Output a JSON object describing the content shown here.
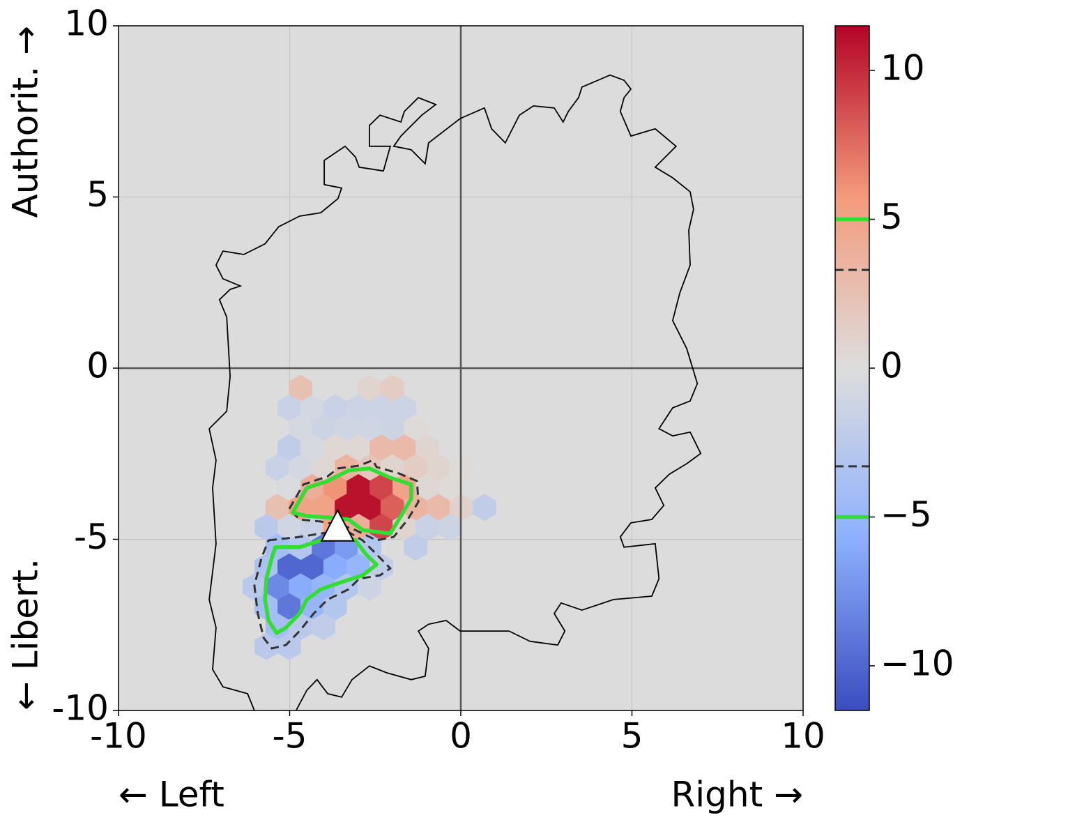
{
  "chart_data": {
    "type": "hexbin",
    "xlabel_left": "← Left",
    "xlabel_right": "Right →",
    "ylabel_top": "Authorit. →",
    "ylabel_bottom": "← Libert.",
    "xlim": [
      -10,
      10
    ],
    "ylim": [
      -10,
      10
    ],
    "xticks": [
      -10,
      -5,
      0,
      5,
      10
    ],
    "yticks": [
      -10,
      -5,
      0,
      5,
      10
    ],
    "grid": true,
    "zero_lines": true,
    "facecolor": "#dcdcdc",
    "colormap": [
      "#3b4cc0",
      "#8db0fe",
      "#dddddd",
      "#f49a7b",
      "#b40426"
    ],
    "clim": [
      -11.5,
      11.5
    ],
    "cticks": [
      {
        "value": -10,
        "label": "−10"
      },
      {
        "value": -5,
        "label": "−5"
      },
      0,
      5,
      10
    ],
    "hex": {
      "x": [
        -4.68,
        -2.67,
        -2.0,
        -5.01,
        -4.34,
        -3.67,
        -2.99,
        -2.32,
        -1.65,
        -4.68,
        -4.01,
        -3.34,
        -2.67,
        -2.0,
        -1.32,
        -5.01,
        -4.34,
        -3.67,
        -2.99,
        -2.32,
        -1.65,
        -0.98,
        -5.36,
        -4.68,
        -4.01,
        -3.34,
        -2.67,
        -2.0,
        -1.32,
        -0.65,
        0.02,
        -5.01,
        -4.34,
        -3.67,
        -2.99,
        -2.32,
        -1.65,
        -0.98,
        -0.31,
        -5.36,
        -4.68,
        -4.01,
        -3.34,
        -2.67,
        -2.0,
        -1.32,
        -0.65,
        0.02,
        0.69,
        -5.68,
        -5.01,
        -4.34,
        -3.67,
        -2.99,
        -2.32,
        -1.65,
        -0.98,
        -0.31,
        -5.36,
        -4.68,
        -4.01,
        -3.34,
        -2.67,
        -1.32,
        -5.68,
        -5.01,
        -4.34,
        -3.67,
        -2.99,
        -2.32,
        -6.03,
        -5.36,
        -4.68,
        -4.01,
        -3.34,
        -2.67,
        -5.68,
        -5.01,
        -4.34,
        -3.67,
        -5.36,
        -4.68,
        -4.01,
        -5.68,
        -5.01
      ],
      "y": [
        -0.59,
        -0.59,
        -0.59,
        -1.17,
        -1.17,
        -1.17,
        -1.17,
        -1.17,
        -1.17,
        -1.75,
        -1.75,
        -1.75,
        -1.75,
        -1.75,
        -1.75,
        -2.33,
        -2.33,
        -2.33,
        -2.33,
        -2.33,
        -2.33,
        -2.33,
        -2.91,
        -2.91,
        -2.91,
        -2.91,
        -2.91,
        -2.91,
        -2.91,
        -2.91,
        -2.91,
        -3.49,
        -3.49,
        -3.49,
        -3.49,
        -3.49,
        -3.49,
        -3.49,
        -3.49,
        -4.07,
        -4.07,
        -4.07,
        -4.07,
        -4.07,
        -4.07,
        -4.07,
        -4.07,
        -4.07,
        -4.07,
        -4.65,
        -4.65,
        -4.65,
        -4.65,
        -4.65,
        -4.65,
        -4.65,
        -4.65,
        -4.65,
        -5.23,
        -5.23,
        -5.23,
        -5.23,
        -5.23,
        -5.23,
        -5.81,
        -5.81,
        -5.81,
        -5.81,
        -5.81,
        -5.81,
        -6.39,
        -6.39,
        -6.39,
        -6.39,
        -6.39,
        -6.39,
        -6.97,
        -6.97,
        -6.97,
        -6.97,
        -7.55,
        -7.55,
        -7.55,
        -8.13,
        -8.13
      ],
      "values": [
        2.5,
        0.8,
        1.5,
        -1.5,
        -0.8,
        -1.5,
        -1.3,
        -1.3,
        -1.3,
        -0.7,
        -1.2,
        -1.0,
        -1.0,
        -1.2,
        0.3,
        -2,
        -0.5,
        0.5,
        0.5,
        3,
        3,
        0.8,
        -1.5,
        -0.8,
        0.5,
        3.5,
        2,
        0.8,
        1.5,
        0.8,
        0.3,
        -0.3,
        4,
        6,
        11,
        9,
        5,
        0.5,
        0.3,
        2.5,
        5,
        5,
        11,
        11,
        8,
        3.5,
        3,
        1,
        -2,
        -2.5,
        -1,
        -1.5,
        5,
        4,
        9,
        0.8,
        -1.5,
        -1.2,
        -4,
        -3,
        -9,
        -7,
        -3,
        -2,
        -3.5,
        -10,
        -10,
        -6,
        -5,
        -2,
        -2.5,
        -8,
        -6,
        -5,
        -3,
        -1.2,
        -4,
        -9,
        -5,
        -3,
        -4,
        -2.5,
        -2,
        -2.5,
        -2.5
      ]
    },
    "outline": {
      "x": [
        -6.03,
        -6.23,
        -6.95,
        -7.25,
        -7.15,
        -7.35,
        -7.15,
        -7.25,
        -7.15,
        -7.35,
        -6.84,
        -6.74,
        -6.84,
        -7.05,
        -6.74,
        -6.44,
        -6.95,
        -7.15,
        -6.95,
        -6.34,
        -5.72,
        -5.32,
        -4.71,
        -4.09,
        -3.59,
        -3.48,
        -3.99,
        -3.99,
        -3.38,
        -3.08,
        -2.97,
        -2.26,
        -2.06,
        -2.67,
        -2.67,
        -2.36,
        -1.75,
        -1.65,
        -1.24,
        -0.73,
        -1.14,
        -1.75,
        -1.96,
        -1.45,
        -1.04,
        -0.94,
        -0.02,
        0.69,
        0.9,
        1.3,
        1.71,
        2.12,
        2.73,
        2.99,
        3.14,
        3.44,
        3.54,
        4.36,
        4.77,
        4.97,
        4.77,
        4.66,
        4.97,
        5.68,
        6.29,
        5.68,
        6.19,
        6.7,
        6.8,
        6.66,
        6.7,
        6.4,
        6.19,
        6.6,
        6.91,
        6.7,
        6.19,
        5.79,
        6.19,
        6.7,
        7.01,
        6.6,
        6.09,
        5.68,
        5.93,
        5.58,
        4.97,
        4.66,
        4.77,
        5.68,
        5.79,
        5.58,
        4.46,
        3.54,
        2.93,
        2.73,
        3.04,
        2.83,
        2.02,
        1.41,
        -0.02,
        -0.43,
        -0.94,
        -1.24,
        -0.94,
        -1.04,
        -1.45,
        -2.16,
        -2.67,
        -3.18,
        -3.48,
        -3.89,
        -4.2,
        -4.5,
        -4.81
      ],
      "y": [
        -10.0,
        -9.51,
        -9.31,
        -8.8,
        -7.58,
        -6.76,
        -5.13,
        -3.5,
        -2.69,
        -1.77,
        -1.26,
        -0.24,
        1.49,
        2.0,
        2.3,
        2.4,
        2.61,
        3.01,
        3.42,
        3.32,
        3.63,
        4.13,
        4.44,
        4.54,
        4.95,
        5.26,
        5.36,
        6.07,
        6.48,
        6.17,
        5.87,
        5.76,
        6.48,
        6.48,
        7.09,
        7.39,
        7.19,
        7.5,
        7.9,
        7.7,
        7.39,
        6.78,
        6.48,
        6.38,
        5.97,
        6.58,
        7.29,
        7.6,
        6.99,
        6.58,
        7.39,
        7.66,
        7.6,
        7.19,
        7.5,
        7.9,
        8.21,
        8.56,
        8.41,
        8.15,
        7.9,
        7.5,
        6.78,
        6.99,
        6.48,
        5.87,
        5.56,
        5.15,
        4.64,
        4.03,
        3.01,
        2.2,
        1.39,
        0.57,
        -0.45,
        -0.96,
        -1.16,
        -1.77,
        -1.98,
        -1.87,
        -2.49,
        -2.79,
        -3.1,
        -3.5,
        -4.01,
        -4.42,
        -4.52,
        -4.93,
        -5.23,
        -5.13,
        -6.15,
        -6.66,
        -6.76,
        -7.07,
        -6.86,
        -7.17,
        -7.68,
        -8.09,
        -7.98,
        -7.68,
        -7.68,
        -7.37,
        -7.48,
        -7.68,
        -8.19,
        -9.0,
        -9.1,
        -8.9,
        -8.7,
        -9.1,
        -9.61,
        -9.51,
        -9.1,
        -9.41,
        -10.0
      ]
    },
    "contours": [
      {
        "level": 3.3,
        "color": "#333333",
        "style": "dashed",
        "x": [
          -5.01,
          -4.6,
          -3.89,
          -3.59,
          -2.97,
          -2.57,
          -2.46,
          -1.85,
          -1.28,
          -1.24,
          -1.55,
          -1.96,
          -2.46,
          -3.08,
          -3.38,
          -4.09,
          -4.71
        ],
        "y": [
          -4.11,
          -3.4,
          -3.16,
          -2.93,
          -2.85,
          -2.69,
          -2.89,
          -3.06,
          -3.3,
          -3.91,
          -4.42,
          -4.93,
          -5.03,
          -4.73,
          -4.62,
          -4.48,
          -4.42
        ]
      },
      {
        "level": -3.3,
        "color": "#333333",
        "style": "dashed",
        "x": [
          -5.62,
          -4.71,
          -4.09,
          -3.38,
          -2.87,
          -2.46,
          -2.06,
          -2.36,
          -2.97,
          -3.28,
          -3.89,
          -4.3,
          -4.71,
          -5.11,
          -5.52,
          -5.76,
          -5.93,
          -6.03,
          -5.82
        ],
        "y": [
          -5.03,
          -4.93,
          -4.83,
          -4.73,
          -5.03,
          -5.44,
          -5.85,
          -6.05,
          -6.15,
          -6.46,
          -6.76,
          -7.17,
          -7.68,
          -8.09,
          -8.19,
          -7.88,
          -7.17,
          -6.35,
          -5.54
        ]
      },
      {
        "level": 5,
        "color": "#33dd33",
        "style": "solid",
        "x": [
          -4.91,
          -4.5,
          -3.89,
          -3.28,
          -2.67,
          -2.06,
          -1.45,
          -1.45,
          -1.75,
          -2.06,
          -2.87,
          -3.28,
          -3.89,
          -4.5
        ],
        "y": [
          -4.22,
          -3.5,
          -3.3,
          -2.99,
          -2.93,
          -3.2,
          -3.4,
          -3.81,
          -4.32,
          -4.83,
          -4.73,
          -4.42,
          -4.36,
          -4.32
        ]
      },
      {
        "level": -5,
        "color": "#33dd33",
        "style": "solid",
        "x": [
          -5.42,
          -4.71,
          -4.09,
          -3.48,
          -3.08,
          -2.77,
          -2.46,
          -2.87,
          -3.48,
          -4.09,
          -4.5,
          -4.71,
          -5.11,
          -5.38,
          -5.62,
          -5.72,
          -5.68,
          -5.52
        ],
        "y": [
          -5.23,
          -5.23,
          -5.03,
          -4.89,
          -5.03,
          -5.44,
          -5.74,
          -6.05,
          -6.25,
          -6.46,
          -6.76,
          -7.17,
          -7.58,
          -7.74,
          -7.37,
          -6.76,
          -6.15,
          -5.54
        ]
      }
    ],
    "marker": {
      "x": -3.6,
      "y": -4.7
    }
  }
}
